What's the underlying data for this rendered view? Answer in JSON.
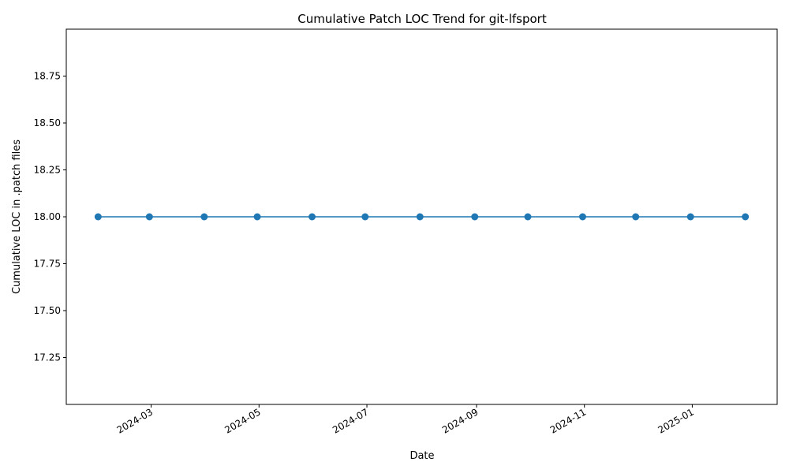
{
  "chart_data": {
    "type": "line",
    "title": "Cumulative Patch LOC Trend for git-lfsport",
    "xlabel": "Date",
    "ylabel": "Cumulative LOC in .patch files",
    "x": [
      "2024-01-31",
      "2024-02-29",
      "2024-03-31",
      "2024-04-30",
      "2024-05-31",
      "2024-06-30",
      "2024-07-31",
      "2024-08-31",
      "2024-09-30",
      "2024-10-31",
      "2024-11-30",
      "2024-12-31",
      "2025-01-31"
    ],
    "series": [
      {
        "name": "",
        "values": [
          18,
          18,
          18,
          18,
          18,
          18,
          18,
          18,
          18,
          18,
          18,
          18,
          18
        ],
        "color": "#1f77b4",
        "marker": "circle"
      }
    ],
    "xlim": [
      "2024-01-13",
      "2025-02-18"
    ],
    "ylim": [
      17.0,
      19.0
    ],
    "x_ticks": [
      "2024-03",
      "2024-05",
      "2024-07",
      "2024-09",
      "2024-11",
      "2025-01"
    ],
    "y_ticks": [
      "17.25",
      "17.50",
      "17.75",
      "18.00",
      "18.25",
      "18.50",
      "18.75"
    ],
    "grid": false,
    "legend": "none"
  }
}
